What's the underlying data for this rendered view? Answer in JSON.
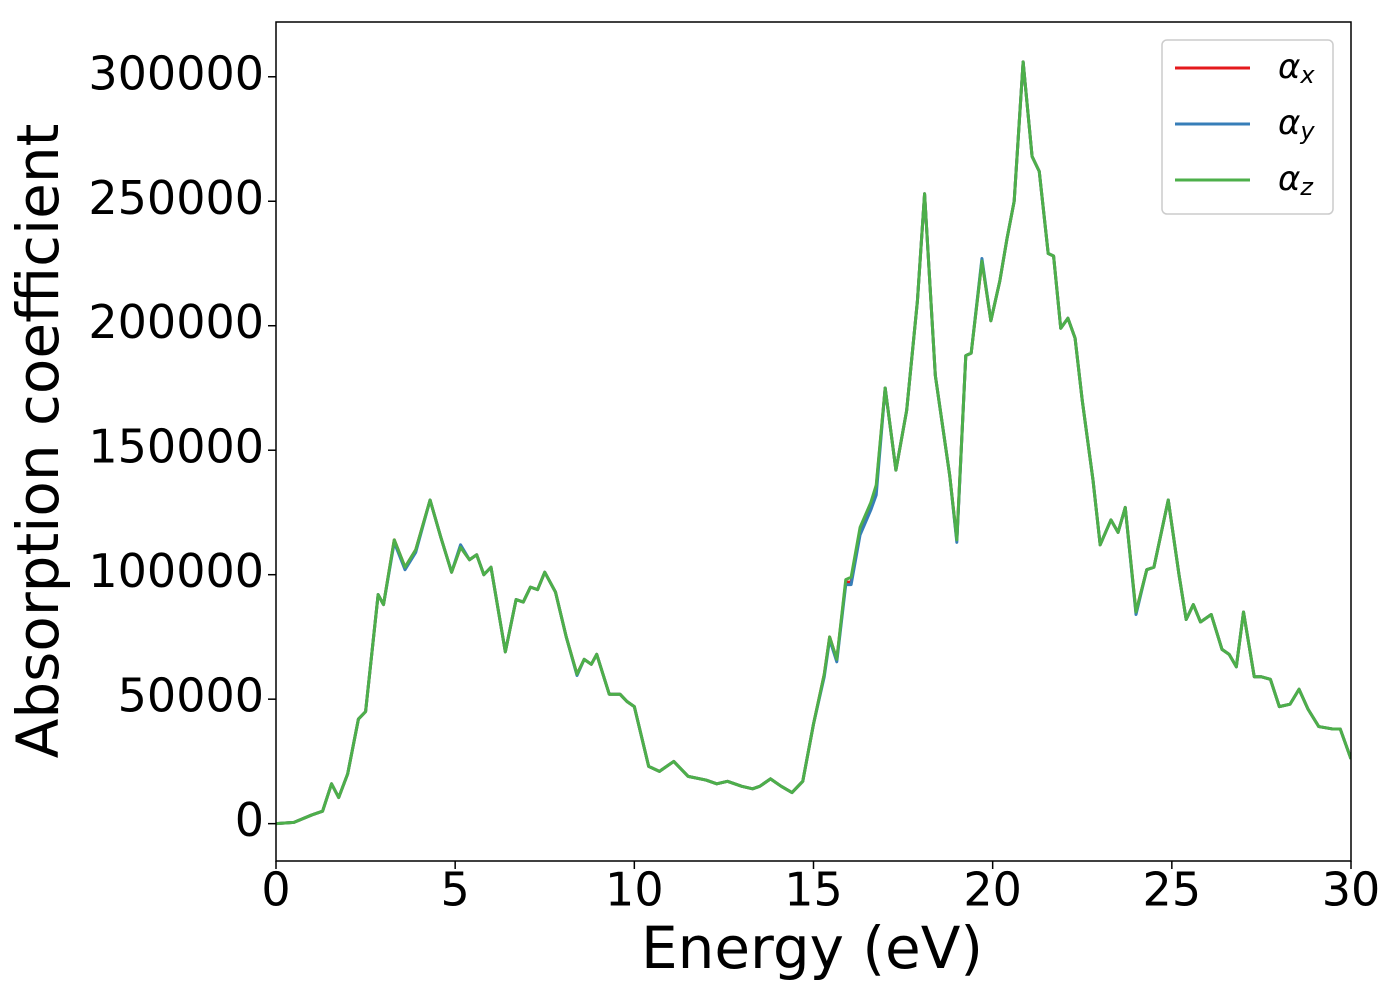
{
  "chart_data": {
    "type": "line",
    "xlabel": "Energy (eV)",
    "ylabel": "Absorption coefficient",
    "x": [
      0,
      0.5,
      1.0,
      1.3,
      1.55,
      1.75,
      2.0,
      2.3,
      2.5,
      2.85,
      3.0,
      3.3,
      3.6,
      3.9,
      4.3,
      4.6,
      4.9,
      5.15,
      5.4,
      5.6,
      5.8,
      6.0,
      6.4,
      6.7,
      6.9,
      7.1,
      7.3,
      7.5,
      7.8,
      8.1,
      8.4,
      8.6,
      8.8,
      8.95,
      9.3,
      9.6,
      9.8,
      10.0,
      10.4,
      10.7,
      11.1,
      11.5,
      12.0,
      12.3,
      12.6,
      13.0,
      13.3,
      13.5,
      13.8,
      14.1,
      14.4,
      14.7,
      15.0,
      15.3,
      15.45,
      15.65,
      15.9,
      16.05,
      16.3,
      16.6,
      16.75,
      17.0,
      17.3,
      17.6,
      17.9,
      18.1,
      18.4,
      18.8,
      19.0,
      19.25,
      19.4,
      19.7,
      19.95,
      20.2,
      20.4,
      20.6,
      20.85,
      21.1,
      21.3,
      21.55,
      21.7,
      21.9,
      22.1,
      22.3,
      22.5,
      22.8,
      23.0,
      23.3,
      23.5,
      23.7,
      24.0,
      24.3,
      24.5,
      24.9,
      25.2,
      25.4,
      25.6,
      25.8,
      26.1,
      26.4,
      26.6,
      26.8,
      27.0,
      27.3,
      27.5,
      27.75,
      28.0,
      28.3,
      28.55,
      28.8,
      29.1,
      29.5,
      29.7,
      30.0
    ],
    "series": [
      {
        "name": "αx",
        "color": "#e41a1c",
        "values": [
          0,
          500,
          3500,
          5000,
          16000,
          10500,
          20000,
          42000,
          45000,
          92000,
          88000,
          114000,
          103000,
          110000,
          130000,
          115000,
          101000,
          111000,
          106000,
          108000,
          100000,
          103000,
          69000,
          90000,
          89000,
          95000,
          94000,
          101000,
          93000,
          75000,
          60000,
          66000,
          64000,
          68000,
          52000,
          52000,
          49000,
          47000,
          23000,
          21000,
          25000,
          19000,
          17500,
          16000,
          17000,
          15000,
          14000,
          15000,
          18000,
          15000,
          12500,
          17000,
          40000,
          60000,
          75000,
          66000,
          97000,
          97000,
          118000,
          128000,
          135000,
          175000,
          142000,
          166000,
          210000,
          253000,
          180000,
          140000,
          114000,
          188000,
          189000,
          226000,
          202000,
          218000,
          235000,
          250000,
          306000,
          268000,
          262000,
          229000,
          228000,
          199000,
          203000,
          195000,
          170000,
          138000,
          112000,
          122000,
          117000,
          127000,
          85000,
          102000,
          103000,
          130000,
          100000,
          82000,
          88000,
          81000,
          84000,
          70000,
          68000,
          63000,
          85000,
          59000,
          59000,
          58000,
          47000,
          48000,
          54000,
          46000,
          39000,
          38000,
          38000,
          26000
        ]
      },
      {
        "name": "αy",
        "color": "#377eb8",
        "values": [
          0,
          500,
          3500,
          5000,
          16000,
          10500,
          20000,
          42000,
          45000,
          92000,
          88000,
          113000,
          102000,
          109000,
          130000,
          115000,
          101000,
          112000,
          106000,
          108000,
          100000,
          103000,
          69000,
          90000,
          89000,
          95000,
          94000,
          101000,
          93000,
          75000,
          59500,
          66000,
          64000,
          68000,
          52000,
          52000,
          49000,
          47000,
          23000,
          21000,
          25000,
          19000,
          17500,
          16000,
          17000,
          15000,
          14000,
          15000,
          18000,
          15000,
          12500,
          17000,
          40000,
          59000,
          74000,
          65000,
          96000,
          96000,
          116000,
          126000,
          132000,
          175000,
          142000,
          166000,
          210000,
          253000,
          180000,
          140000,
          113000,
          188000,
          189000,
          227000,
          202000,
          218000,
          235000,
          250000,
          306000,
          268000,
          262000,
          229000,
          228000,
          199000,
          203000,
          195000,
          170000,
          138000,
          112000,
          122000,
          117000,
          127000,
          84000,
          102000,
          103000,
          130000,
          100000,
          82000,
          88000,
          81000,
          84000,
          70000,
          68000,
          63000,
          85000,
          59000,
          59000,
          58000,
          47000,
          48000,
          54000,
          46000,
          39000,
          38000,
          38000,
          26000
        ]
      },
      {
        "name": "αz",
        "color": "#4daf4a",
        "values": [
          0,
          500,
          3500,
          5000,
          16000,
          10500,
          20000,
          42000,
          45000,
          92000,
          88000,
          114000,
          103000,
          110000,
          130000,
          115000,
          101000,
          111000,
          106000,
          108000,
          100000,
          103000,
          69000,
          90000,
          89000,
          95000,
          94000,
          101000,
          93000,
          75000,
          60000,
          66000,
          64000,
          68000,
          52000,
          52000,
          49000,
          47000,
          23000,
          21000,
          25000,
          19000,
          17500,
          16000,
          17000,
          15000,
          14000,
          15000,
          18000,
          15000,
          12500,
          17000,
          40000,
          60000,
          75000,
          66000,
          98000,
          99000,
          119000,
          129000,
          136000,
          175000,
          142000,
          166000,
          210000,
          253000,
          180000,
          140000,
          114000,
          188000,
          189000,
          226000,
          202000,
          218000,
          235000,
          250000,
          306000,
          268000,
          262000,
          229000,
          228000,
          199000,
          203000,
          195000,
          170000,
          138000,
          112000,
          122000,
          117000,
          127000,
          85000,
          102000,
          103000,
          130000,
          100000,
          82000,
          88000,
          81000,
          84000,
          70000,
          68000,
          63000,
          85000,
          59000,
          59000,
          58000,
          47000,
          48000,
          54000,
          46000,
          39000,
          38000,
          38000,
          26000
        ]
      }
    ],
    "xlim": [
      0,
      30
    ],
    "xticks": [
      0,
      5,
      10,
      15,
      20,
      25,
      30
    ],
    "ylim": [
      -15000,
      322000
    ],
    "yticks": [
      0,
      50000,
      100000,
      150000,
      200000,
      250000,
      300000
    ],
    "legend": "upper right"
  }
}
